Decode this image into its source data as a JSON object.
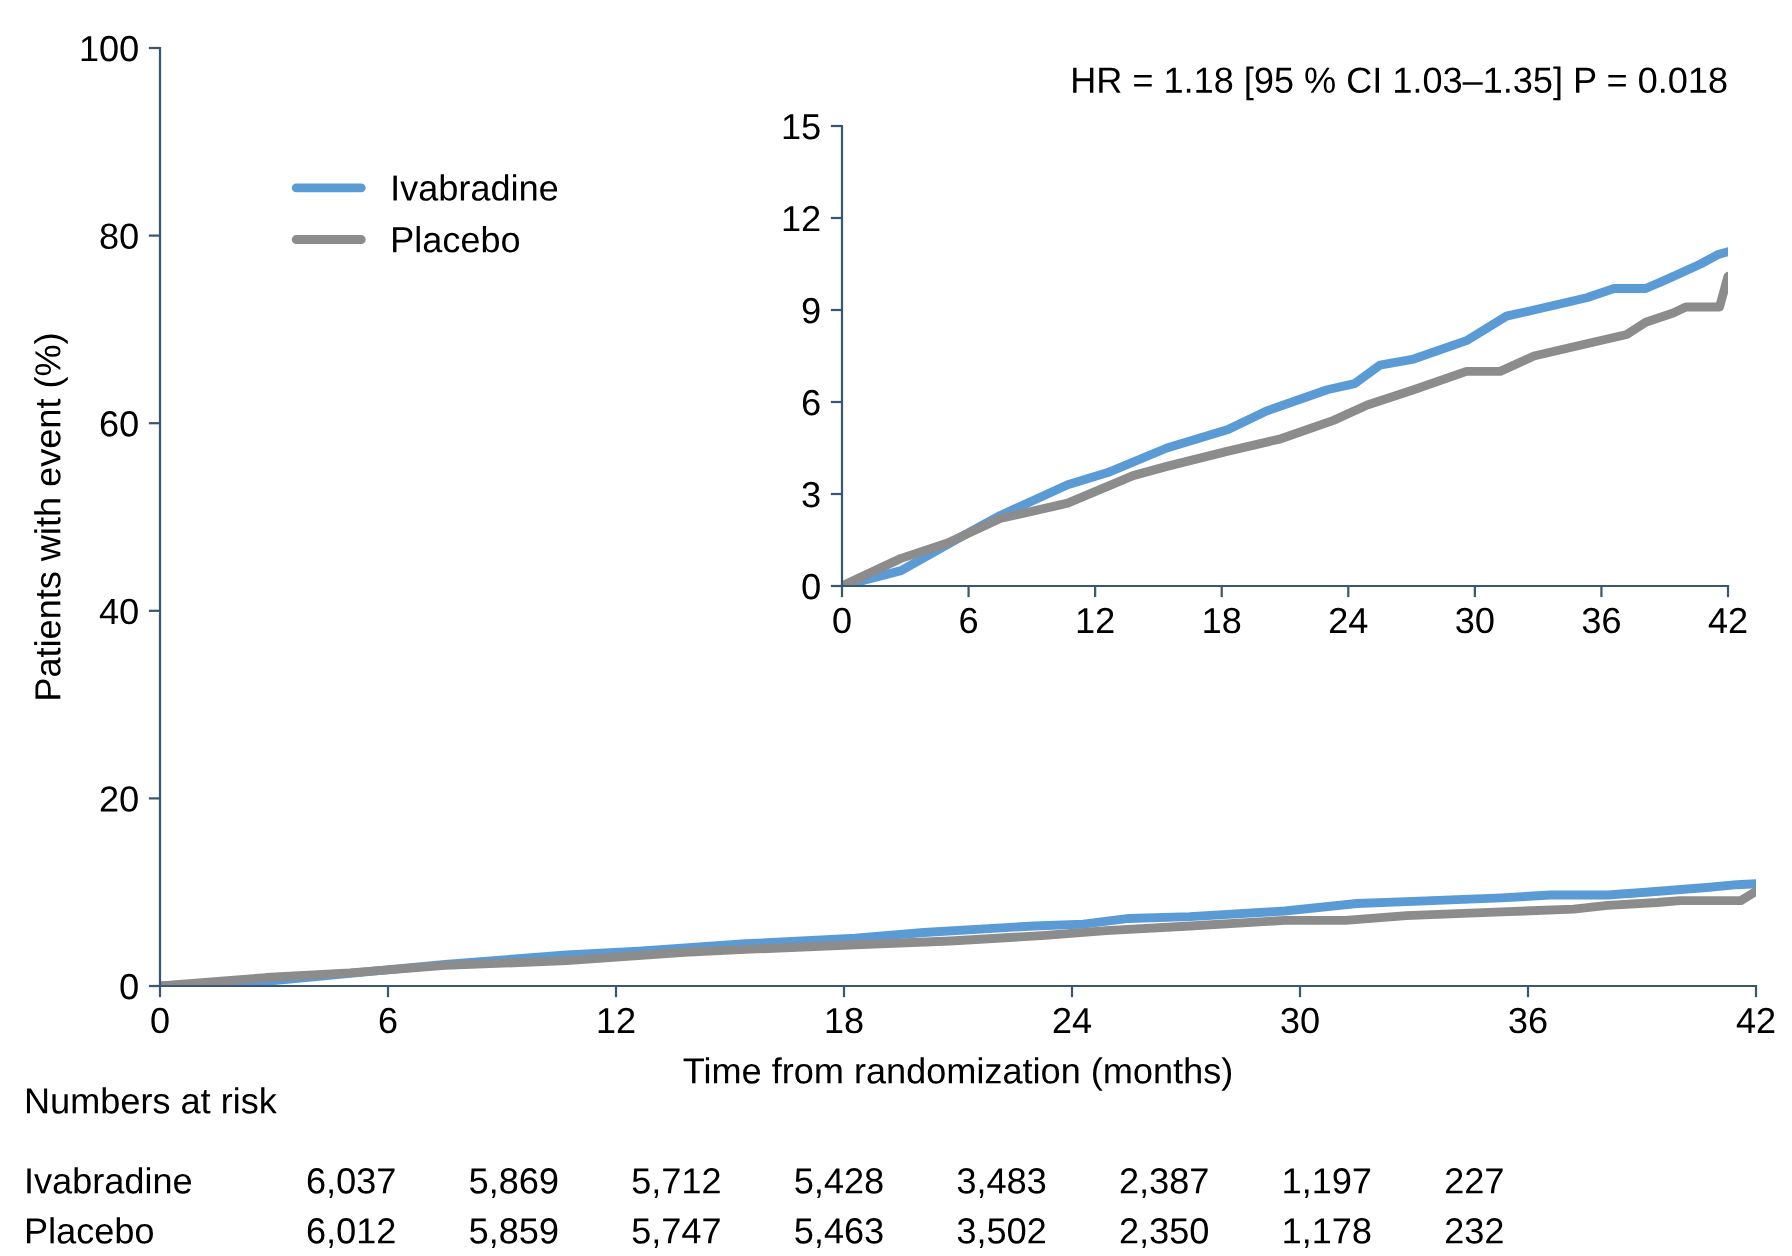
{
  "chart_data": [
    {
      "type": "line",
      "xlabel": "Time from randomization (months)",
      "ylabel": "Patients with event (%)",
      "xlim": [
        0,
        42
      ],
      "xticks": [
        0,
        6,
        12,
        18,
        24,
        30,
        36,
        42
      ],
      "ylim": [
        0,
        100
      ],
      "yticks": [
        0,
        20,
        40,
        60,
        80,
        100
      ],
      "grid": false,
      "legend": "top left",
      "marker": "none",
      "line_style": "solid",
      "series": [
        {
          "name": "Ivabradine",
          "color": "#5b9bd5",
          "x": [
            0,
            2.8,
            5.9,
            7.5,
            10.7,
            12.6,
            15.4,
            18.3,
            20.1,
            23,
            24.3,
            25.5,
            27.1,
            29.6,
            31.5,
            32.8,
            35.3,
            36.6,
            38.1,
            39.1,
            40.7,
            41.5,
            42
          ],
          "values": [
            0,
            0.5,
            1.7,
            2.3,
            3.3,
            3.7,
            4.5,
            5.1,
            5.7,
            6.4,
            6.6,
            7.2,
            7.4,
            8.0,
            8.8,
            9.0,
            9.4,
            9.7,
            9.7,
            10.0,
            10.5,
            10.8,
            10.9
          ]
        },
        {
          "name": "Placebo",
          "color": "#8c8c8c",
          "x": [
            0,
            2.8,
            5.0,
            7.5,
            10.7,
            13.8,
            15.4,
            18.3,
            20.8,
            23.3,
            24.9,
            27.1,
            29.6,
            31.2,
            32.8,
            35.3,
            37.2,
            38.1,
            39.4,
            40.0,
            41.6,
            41.8,
            42
          ],
          "values": [
            0,
            0.9,
            1.4,
            2.2,
            2.7,
            3.6,
            3.9,
            4.4,
            4.8,
            5.4,
            5.9,
            6.4,
            7.0,
            7.0,
            7.5,
            7.9,
            8.2,
            8.6,
            8.9,
            9.1,
            9.1,
            9.6,
            10.1
          ]
        }
      ],
      "annotations": [
        "Numbers at risk",
        "Ivabradine",
        "6,037",
        "5,869",
        "5,712",
        "5,428",
        "3,483",
        "2,387",
        "1,197",
        "227",
        "Placebo",
        "6,012",
        "5,859",
        "5,747",
        "5,463",
        "3,502",
        "2,350",
        "1,178",
        "232"
      ]
    },
    {
      "type": "line",
      "title": "HR = 1.18 [95 % CI 1.03–1.35] P = 0.018",
      "xlim": [
        0,
        42
      ],
      "xticks": [
        0,
        6,
        12,
        18,
        24,
        30,
        36,
        42
      ],
      "ylim": [
        0,
        15
      ],
      "yticks": [
        0,
        3,
        6,
        9,
        12,
        15
      ],
      "grid": false,
      "marker": "none",
      "line_style": "solid",
      "series": [
        {
          "color": "#5b9bd5",
          "x": [
            0,
            2.8,
            5.9,
            7.5,
            10.7,
            12.6,
            15.4,
            18.3,
            20.1,
            23,
            24.3,
            25.5,
            27.1,
            29.6,
            31.5,
            32.8,
            35.3,
            36.6,
            38.1,
            39.1,
            40.7,
            41.5,
            42
          ],
          "values": [
            0,
            0.5,
            1.7,
            2.3,
            3.3,
            3.7,
            4.5,
            5.1,
            5.7,
            6.4,
            6.6,
            7.2,
            7.4,
            8.0,
            8.8,
            9.0,
            9.4,
            9.7,
            9.7,
            10.0,
            10.5,
            10.8,
            10.9
          ]
        },
        {
          "color": "#8c8c8c",
          "x": [
            0,
            2.8,
            5.0,
            7.5,
            10.7,
            13.8,
            15.4,
            18.3,
            20.8,
            23.3,
            24.9,
            27.1,
            29.6,
            31.2,
            32.8,
            35.3,
            37.2,
            38.1,
            39.4,
            40.0,
            41.6,
            41.8,
            42
          ],
          "values": [
            0,
            0.9,
            1.4,
            2.2,
            2.7,
            3.6,
            3.9,
            4.4,
            4.8,
            5.4,
            5.9,
            6.4,
            7.0,
            7.0,
            7.5,
            7.9,
            8.2,
            8.6,
            8.9,
            9.1,
            9.1,
            9.6,
            10.1
          ]
        }
      ]
    }
  ]
}
